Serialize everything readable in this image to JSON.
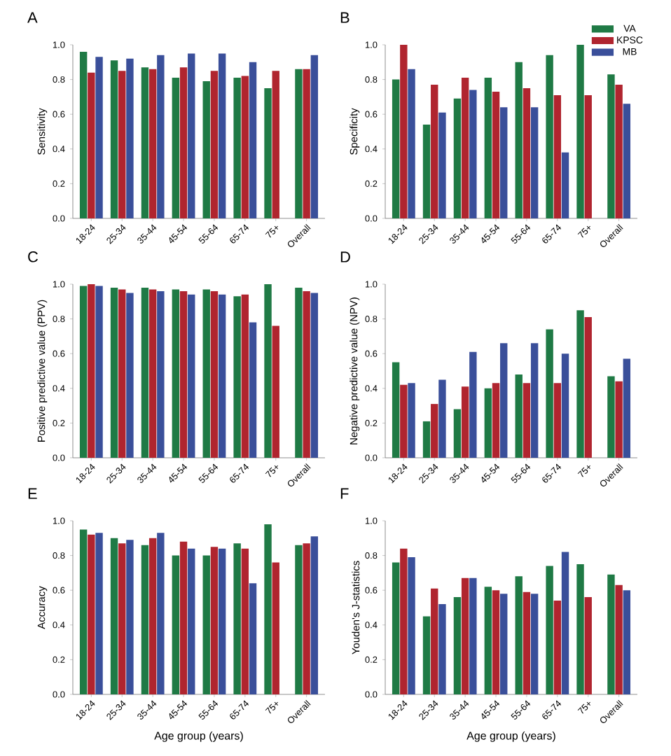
{
  "chart_data": [
    {
      "type": "bar",
      "title": "A",
      "ylabel": "Sensitivity",
      "categories": [
        "18-24",
        "25-34",
        "35-44",
        "45-54",
        "55-64",
        "65-74",
        "75+",
        "Overall"
      ],
      "ylim": [
        0,
        1.0
      ],
      "yticks": [
        {
          "value": 0,
          "label": "0.0"
        },
        {
          "value": 0.2,
          "label": "0.2"
        },
        {
          "value": 0.4,
          "label": "0.4"
        },
        {
          "value": 0.6,
          "label": "0.6"
        },
        {
          "value": 0.8,
          "label": "0.8"
        },
        {
          "value": 1.0,
          "label": "1.0"
        }
      ],
      "grid": false,
      "series": [
        {
          "color": "#1f7a45",
          "values": [
            0.96,
            0.91,
            0.87,
            0.81,
            0.79,
            0.81,
            0.75,
            0.86
          ]
        },
        {
          "color": "#b0252f",
          "values": [
            0.84,
            0.85,
            0.86,
            0.87,
            0.85,
            0.82,
            0.85,
            0.86
          ]
        },
        {
          "color": "#3a4f9a",
          "values": [
            0.93,
            0.92,
            0.94,
            0.95,
            0.95,
            0.9,
            null,
            0.94
          ]
        }
      ]
    },
    {
      "type": "bar",
      "title": "B",
      "ylabel": "Specificity",
      "categories": [
        "18-24",
        "25-34",
        "35-44",
        "45-54",
        "55-64",
        "65-74",
        "75+",
        "Overall"
      ],
      "ylim": [
        0,
        1.0
      ],
      "yticks": [
        {
          "value": 0,
          "label": "0.0"
        },
        {
          "value": 0.2,
          "label": "0.2"
        },
        {
          "value": 0.4,
          "label": "0.4"
        },
        {
          "value": 0.6,
          "label": "0.6"
        },
        {
          "value": 0.8,
          "label": "0.8"
        },
        {
          "value": 1.0,
          "label": "1.0"
        }
      ],
      "grid": false,
      "legend": "top right",
      "series": [
        {
          "name": "VA",
          "color": "#1f7a45",
          "values": [
            0.8,
            0.54,
            0.69,
            0.81,
            0.9,
            0.94,
            1.0,
            0.83
          ]
        },
        {
          "name": "KPSC",
          "color": "#b0252f",
          "values": [
            1.0,
            0.77,
            0.81,
            0.73,
            0.75,
            0.71,
            0.71,
            0.77
          ]
        },
        {
          "name": "MB",
          "color": "#3a4f9a",
          "values": [
            0.86,
            0.61,
            0.74,
            0.64,
            0.64,
            0.38,
            null,
            0.66
          ]
        }
      ]
    },
    {
      "type": "bar",
      "title": "C",
      "ylabel": "Positive predictive value (PPV)",
      "categories": [
        "18-24",
        "25-34",
        "35-44",
        "45-54",
        "55-64",
        "65-74",
        "75+",
        "Overall"
      ],
      "ylim": [
        0,
        1.0
      ],
      "yticks": [
        {
          "value": 0,
          "label": "0.0"
        },
        {
          "value": 0.2,
          "label": "0.2"
        },
        {
          "value": 0.4,
          "label": "0.4"
        },
        {
          "value": 0.6,
          "label": "0.6"
        },
        {
          "value": 0.8,
          "label": "0.8"
        },
        {
          "value": 1.0,
          "label": "1.0"
        }
      ],
      "grid": false,
      "series": [
        {
          "color": "#1f7a45",
          "values": [
            0.99,
            0.98,
            0.98,
            0.97,
            0.97,
            0.93,
            1.0,
            0.98
          ]
        },
        {
          "color": "#b0252f",
          "values": [
            1.0,
            0.97,
            0.97,
            0.96,
            0.96,
            0.94,
            0.76,
            0.96
          ]
        },
        {
          "color": "#3a4f9a",
          "values": [
            0.99,
            0.95,
            0.96,
            0.94,
            0.94,
            0.78,
            null,
            0.95
          ]
        }
      ]
    },
    {
      "type": "bar",
      "title": "D",
      "ylabel": "Negative predictive value (NPV)",
      "categories": [
        "18-24",
        "25-34",
        "35-44",
        "45-54",
        "55-64",
        "65-74",
        "75+",
        "Overall"
      ],
      "ylim": [
        0,
        1.0
      ],
      "yticks": [
        {
          "value": 0,
          "label": "0.0"
        },
        {
          "value": 0.2,
          "label": "0.2"
        },
        {
          "value": 0.4,
          "label": "0.4"
        },
        {
          "value": 0.6,
          "label": "0.6"
        },
        {
          "value": 0.8,
          "label": "0.8"
        },
        {
          "value": 1.0,
          "label": "1.0"
        }
      ],
      "grid": false,
      "series": [
        {
          "color": "#1f7a45",
          "values": [
            0.55,
            0.21,
            0.28,
            0.4,
            0.48,
            0.74,
            0.85,
            0.47
          ]
        },
        {
          "color": "#b0252f",
          "values": [
            0.42,
            0.31,
            0.41,
            0.43,
            0.43,
            0.43,
            0.81,
            0.44
          ]
        },
        {
          "color": "#3a4f9a",
          "values": [
            0.43,
            0.45,
            0.61,
            0.66,
            0.66,
            0.6,
            null,
            0.57
          ]
        }
      ]
    },
    {
      "type": "bar",
      "title": "E",
      "xlabel": "Age group (years)",
      "ylabel": "Accuracy",
      "categories": [
        "18-24",
        "25-34",
        "35-44",
        "45-54",
        "55-64",
        "65-74",
        "75+",
        "Overall"
      ],
      "ylim": [
        0,
        1.0
      ],
      "yticks": [
        {
          "value": 0,
          "label": "0.0"
        },
        {
          "value": 0.2,
          "label": "0.2"
        },
        {
          "value": 0.4,
          "label": "0.4"
        },
        {
          "value": 0.6,
          "label": "0.6"
        },
        {
          "value": 0.8,
          "label": "0.8"
        },
        {
          "value": 1.0,
          "label": "1.0"
        }
      ],
      "grid": false,
      "series": [
        {
          "color": "#1f7a45",
          "values": [
            0.95,
            0.9,
            0.86,
            0.8,
            0.8,
            0.87,
            0.98,
            0.86
          ]
        },
        {
          "color": "#b0252f",
          "values": [
            0.92,
            0.87,
            0.9,
            0.88,
            0.85,
            0.84,
            0.76,
            0.87
          ]
        },
        {
          "color": "#3a4f9a",
          "values": [
            0.93,
            0.89,
            0.93,
            0.84,
            0.84,
            0.64,
            null,
            0.91
          ]
        }
      ]
    },
    {
      "type": "bar",
      "title": "F",
      "xlabel": "Age group (years)",
      "ylabel": "Youden's J-statistics",
      "categories": [
        "18-24",
        "25-34",
        "35-44",
        "45-54",
        "55-64",
        "65-74",
        "75+",
        "Overall"
      ],
      "ylim": [
        0,
        1.0
      ],
      "yticks": [
        {
          "value": 0,
          "label": "0.0"
        },
        {
          "value": 0.2,
          "label": "0.2"
        },
        {
          "value": 0.4,
          "label": "0.4"
        },
        {
          "value": 0.6,
          "label": "0.6"
        },
        {
          "value": 0.8,
          "label": "0.8"
        },
        {
          "value": 1.0,
          "label": "1.0"
        }
      ],
      "grid": false,
      "series": [
        {
          "color": "#1f7a45",
          "values": [
            0.76,
            0.45,
            0.56,
            0.62,
            0.68,
            0.74,
            0.75,
            0.69
          ]
        },
        {
          "color": "#b0252f",
          "values": [
            0.84,
            0.61,
            0.67,
            0.6,
            0.59,
            0.54,
            0.56,
            0.63
          ]
        },
        {
          "color": "#3a4f9a",
          "values": [
            0.79,
            0.52,
            0.67,
            0.58,
            0.58,
            0.82,
            null,
            0.6
          ]
        }
      ]
    }
  ]
}
